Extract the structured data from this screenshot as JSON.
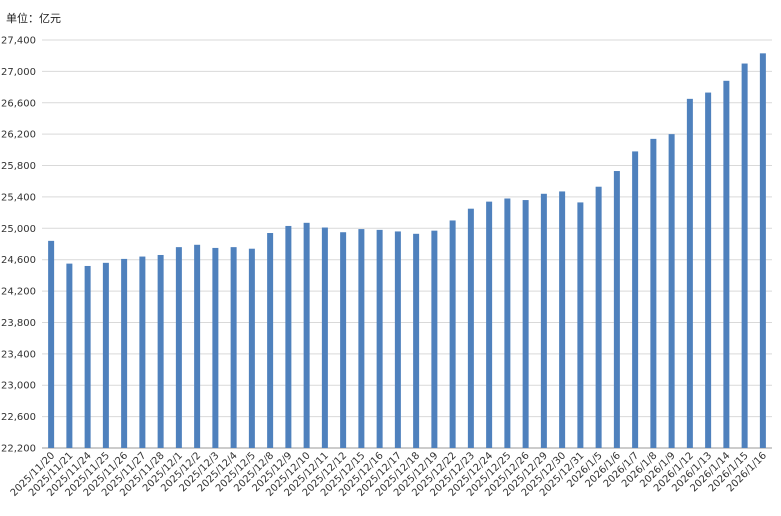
{
  "unit_label": "单位：亿元",
  "colors": {
    "bar": "#4f81bd",
    "grid": "#d9d9d9",
    "axis": "#999999",
    "text": "#333333"
  },
  "chart_data": {
    "type": "bar",
    "title": "",
    "xlabel": "",
    "ylabel": "",
    "ylim": [
      22200,
      27400
    ],
    "yticks": [
      22200,
      22600,
      23000,
      23400,
      23800,
      24200,
      24600,
      25000,
      25400,
      25800,
      26200,
      26600,
      27000,
      27400
    ],
    "ytick_labels": [
      "22,200",
      "22,600",
      "23,000",
      "23,400",
      "23,800",
      "24,200",
      "24,600",
      "25,000",
      "25,400",
      "25,800",
      "26,200",
      "26,600",
      "27,000",
      "27,400"
    ],
    "grid": true,
    "categories": [
      "2025/11/20",
      "2025/11/21",
      "2025/11/24",
      "2025/11/25",
      "2025/11/26",
      "2025/11/27",
      "2025/11/28",
      "2025/12/1",
      "2025/12/2",
      "2025/12/3",
      "2025/12/4",
      "2025/12/5",
      "2025/12/8",
      "2025/12/9",
      "2025/12/10",
      "2025/12/11",
      "2025/12/12",
      "2025/12/15",
      "2025/12/16",
      "2025/12/17",
      "2025/12/18",
      "2025/12/19",
      "2025/12/22",
      "2025/12/23",
      "2025/12/24",
      "2025/12/25",
      "2025/12/26",
      "2025/12/29",
      "2025/12/30",
      "2025/12/31",
      "2026/1/5",
      "2026/1/6",
      "2026/1/7",
      "2026/1/8",
      "2026/1/9",
      "2026/1/12",
      "2026/1/13",
      "2026/1/14",
      "2026/1/15",
      "2026/1/16"
    ],
    "values": [
      24840,
      24550,
      24520,
      24560,
      24610,
      24640,
      24660,
      24760,
      24790,
      24750,
      24760,
      24740,
      24940,
      25030,
      25070,
      25010,
      24950,
      24990,
      24980,
      24960,
      24930,
      24970,
      25100,
      25250,
      25340,
      25380,
      25360,
      25440,
      25470,
      25330,
      25530,
      25730,
      25980,
      26140,
      26200,
      26650,
      26730,
      26880,
      27100,
      27230
    ]
  }
}
